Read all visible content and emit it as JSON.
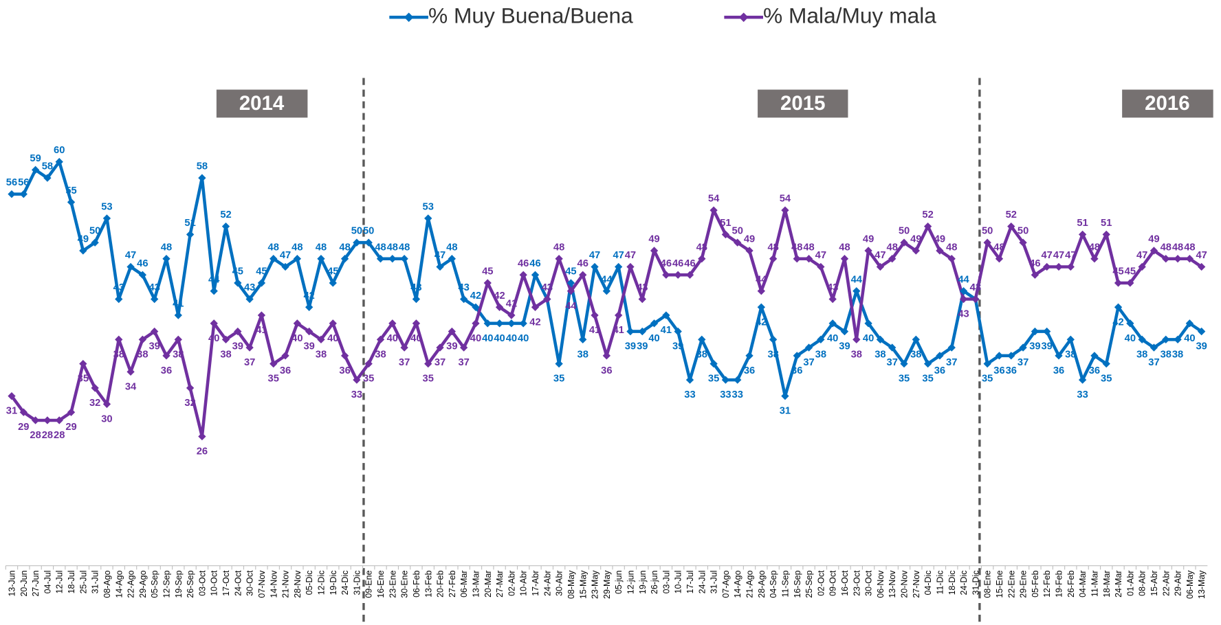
{
  "chart_data": {
    "type": "line",
    "categories": [
      "13-Jun",
      "20-Jun",
      "27-Jun",
      "04-Jul",
      "12-Jul",
      "18-Jul",
      "25-Jul",
      "31-Jul",
      "08-Ago",
      "14-Ago",
      "22-Ago",
      "29-Ago",
      "05-Sep",
      "12-Sep",
      "19-Sep",
      "26-Sep",
      "03-Oct",
      "10-Oct",
      "17-Oct",
      "24-Oct",
      "30-Oct",
      "07-Nov",
      "14-Nov",
      "21-Nov",
      "28-Nov",
      "05-Dic",
      "12-Dic",
      "19-Dic",
      "24-Dic",
      "31-Dic",
      "09-Ene",
      "16-Ene",
      "23-Ene",
      "30-Ene",
      "06-Feb",
      "13-Feb",
      "20-Feb",
      "27-Feb",
      "06-Mar",
      "13-Mar",
      "20-Mar",
      "27-Mar",
      "02-Abr",
      "10-Abr",
      "17-Abr",
      "24-Abr",
      "30-Abr",
      "08-May",
      "15-May",
      "23-May",
      "29-May",
      "05-jun",
      "12-jun",
      "19-jun",
      "26-jun",
      "03-Jul",
      "10-Jul",
      "17-Jul",
      "24-Jul",
      "31-Jul",
      "07-Ago",
      "14-Ago",
      "21-Ago",
      "28-Ago",
      "04-Sep",
      "11-Sep",
      "16-Sep",
      "25-Sep",
      "02-Oct",
      "09-Oct",
      "16-Oct",
      "23-Oct",
      "30-Oct",
      "06-Nov",
      "13-Nov",
      "20-Nov",
      "27-Nov",
      "04-Dic",
      "11-Dic",
      "18-Dic",
      "24-Dic",
      "31-Dic",
      "08-Ene",
      "15-Ene",
      "22-Ene",
      "29-Ene",
      "05-Feb",
      "12-Feb",
      "19-Feb",
      "26-Feb",
      "04-Mar",
      "11-Mar",
      "18-Mar",
      "24-Mar",
      "01-Abr",
      "08-Abr",
      "15-Abr",
      "22-Abr",
      "29-Abr",
      "06-May",
      "13-May"
    ],
    "series": [
      {
        "name": "% Muy Buena/Buena",
        "color": "#0070c0",
        "values": [
          56,
          56,
          59,
          58,
          60,
          55,
          49,
          50,
          53,
          43,
          47,
          46,
          43,
          48,
          41,
          51,
          58,
          44,
          52,
          45,
          43,
          45,
          48,
          47,
          48,
          42,
          48,
          45,
          48,
          50,
          50,
          48,
          48,
          48,
          43,
          53,
          47,
          48,
          43,
          42,
          40,
          40,
          40,
          40,
          46,
          43,
          35,
          45,
          38,
          47,
          44,
          47,
          39,
          39,
          40,
          41,
          39,
          33,
          38,
          35,
          33,
          33,
          36,
          42,
          38,
          31,
          36,
          37,
          38,
          40,
          39,
          44,
          40,
          38,
          37,
          35,
          38,
          35,
          36,
          37,
          44,
          43,
          35,
          36,
          36,
          37,
          39,
          39,
          36,
          38,
          33,
          36,
          35,
          42,
          40,
          38,
          37,
          38,
          38,
          40,
          39
        ]
      },
      {
        "name": "% Mala/Muy mala",
        "color": "#7030a0",
        "values": [
          31,
          29,
          28,
          28,
          28,
          29,
          35,
          32,
          30,
          38,
          34,
          38,
          39,
          36,
          38,
          32,
          26,
          40,
          38,
          39,
          37,
          41,
          35,
          36,
          40,
          39,
          38,
          40,
          36,
          33,
          35,
          38,
          40,
          37,
          40,
          35,
          37,
          39,
          37,
          40,
          45,
          42,
          41,
          46,
          42,
          43,
          48,
          44,
          46,
          41,
          36,
          41,
          47,
          43,
          49,
          46,
          46,
          46,
          48,
          54,
          51,
          50,
          49,
          44,
          48,
          54,
          48,
          48,
          47,
          43,
          48,
          38,
          49,
          47,
          48,
          50,
          49,
          52,
          49,
          48,
          43,
          43,
          50,
          48,
          52,
          50,
          46,
          47,
          47,
          47,
          51,
          48,
          51,
          45,
          45,
          47,
          49,
          48,
          48,
          48,
          47
        ]
      }
    ],
    "ylim": [
      10,
      75
    ],
    "annotations": [
      "2014",
      "2015",
      "2016"
    ]
  }
}
